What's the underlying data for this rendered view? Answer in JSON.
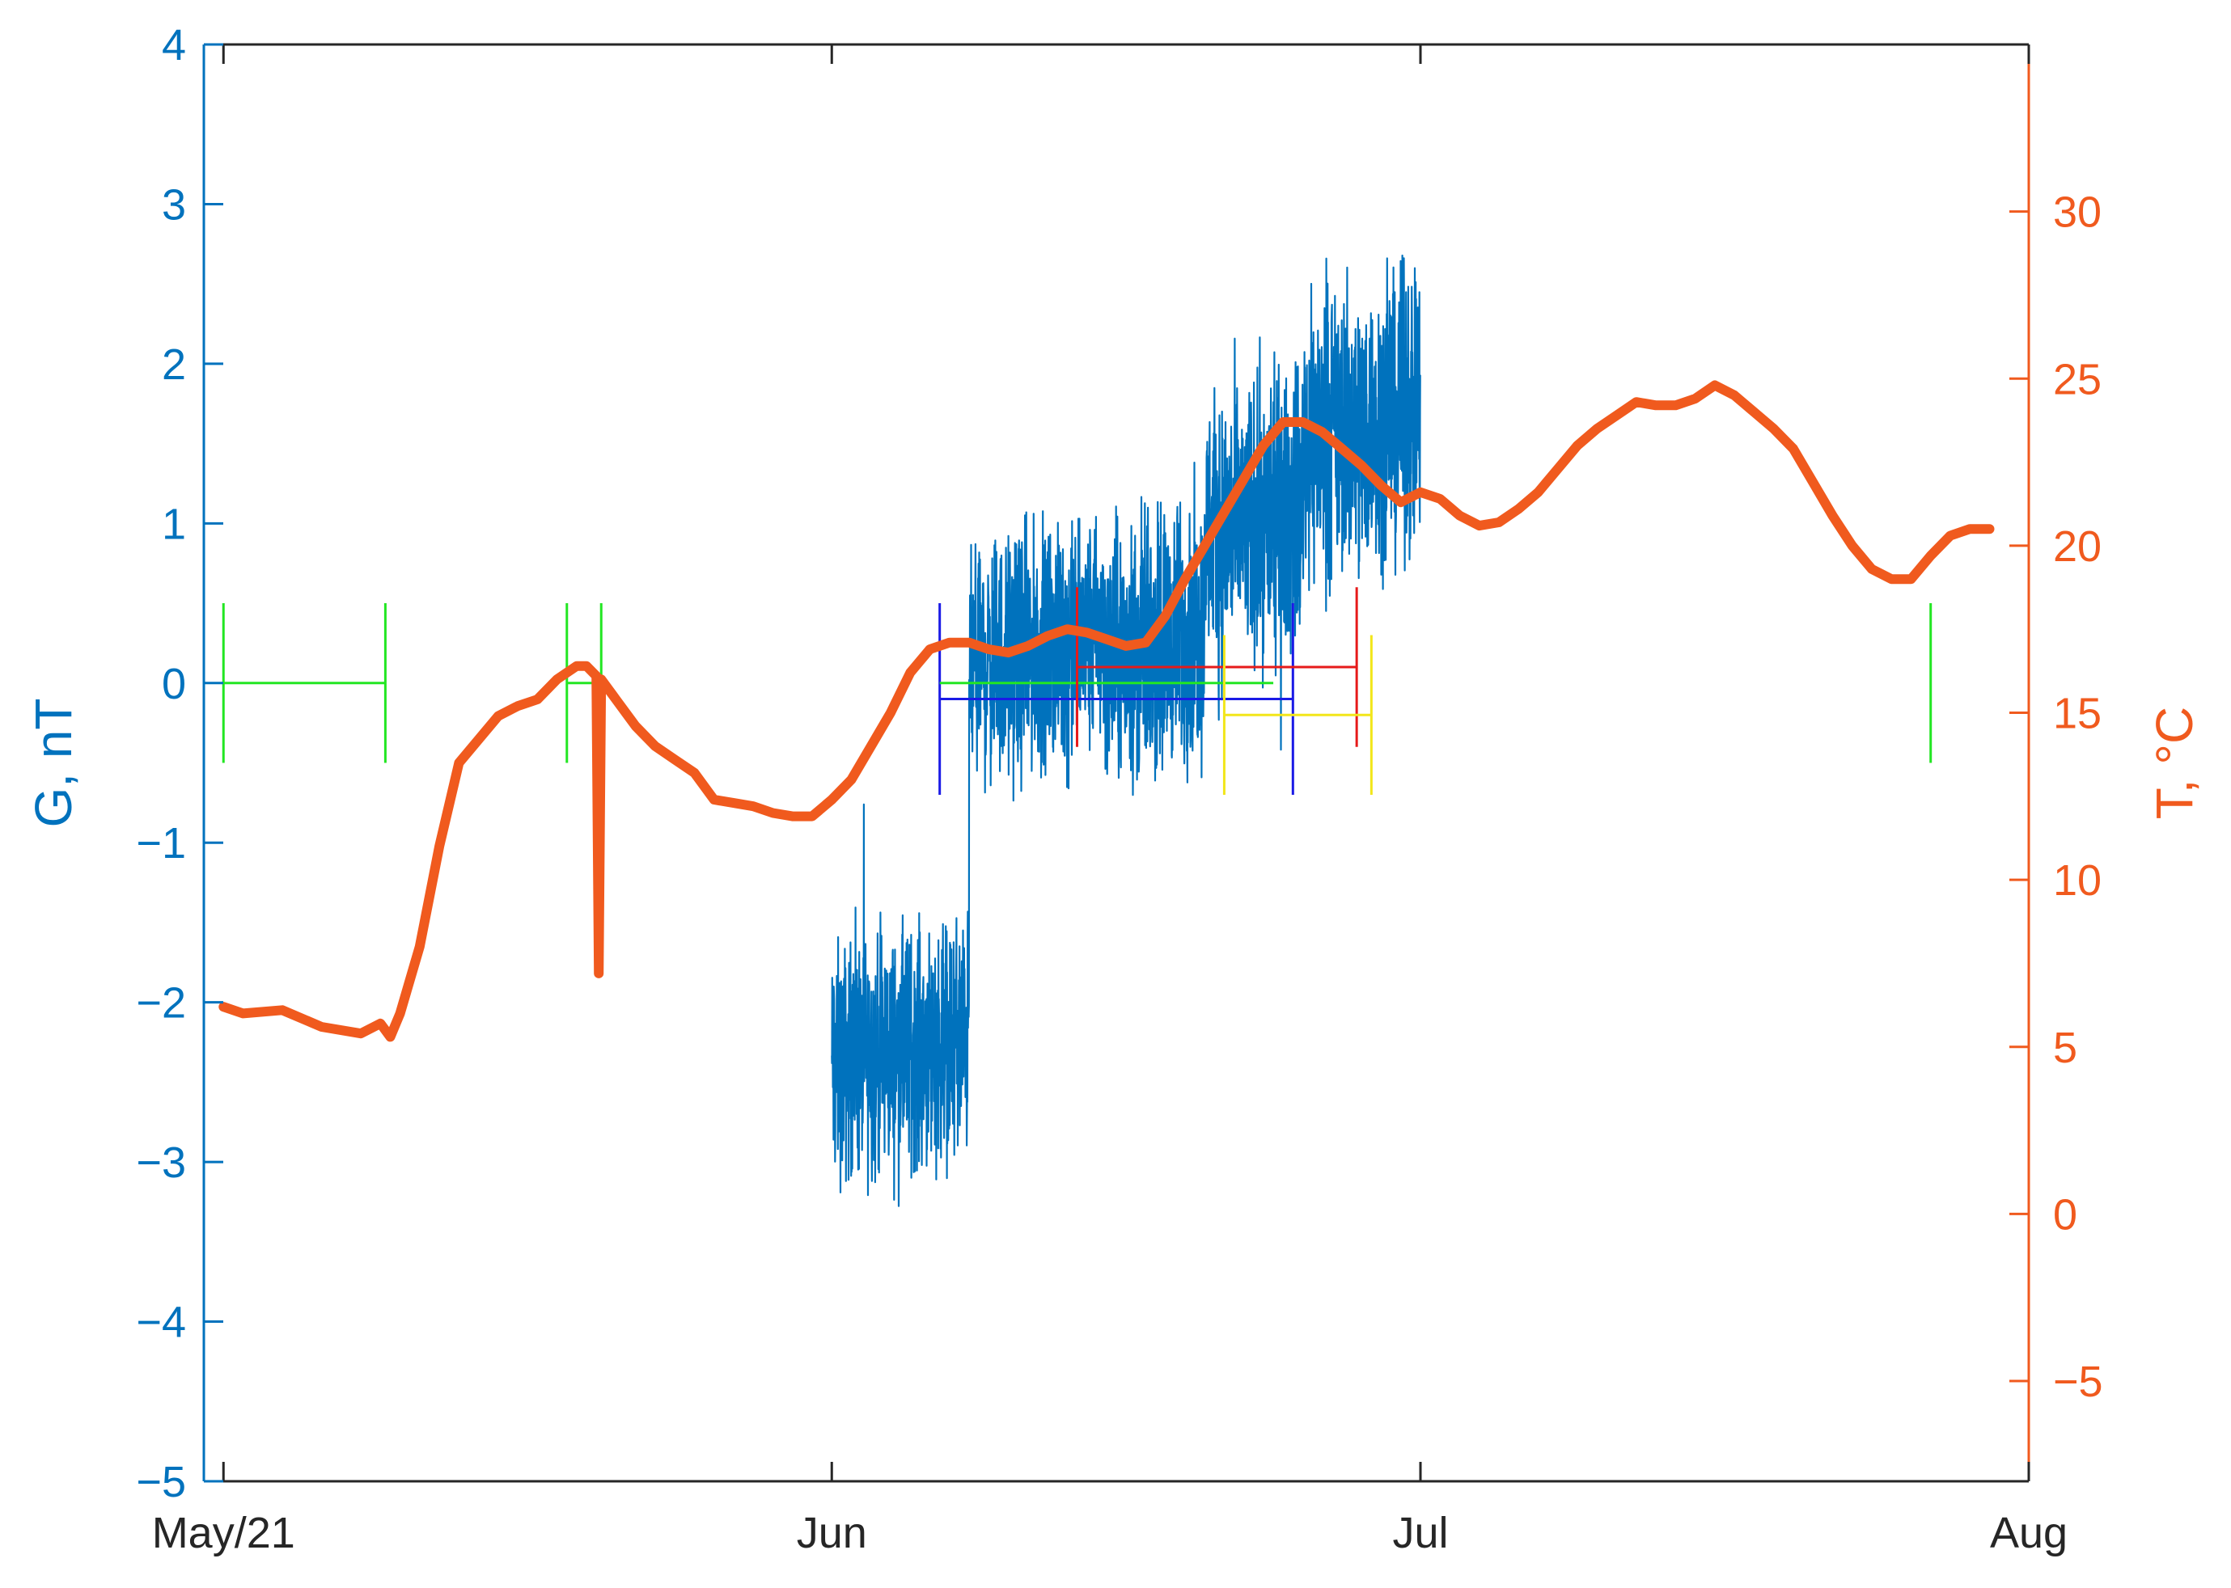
{
  "chart_data": {
    "type": "line",
    "title": "",
    "x_axis": {
      "ticks": [
        {
          "date": "2021-05-01",
          "label": "May/21"
        },
        {
          "date": "2021-06-01",
          "label": "Jun"
        },
        {
          "date": "2021-07-01",
          "label": "Jul"
        },
        {
          "date": "2021-08-01",
          "label": "Aug"
        }
      ],
      "range": [
        "2021-04-30",
        "2021-08-01"
      ]
    },
    "y_left": {
      "label": "G, nT",
      "range": [
        -5,
        4
      ],
      "ticks": [
        -5,
        -4,
        -3,
        -2,
        -1,
        0,
        1,
        2,
        3,
        4
      ],
      "tick_labels": [
        "−5",
        "−4",
        "−3",
        "−2",
        "−1",
        "0",
        "1",
        "2",
        "3",
        "4"
      ],
      "color": "#0072BD"
    },
    "y_right": {
      "label": "T, °C",
      "range": [
        -8,
        35
      ],
      "ticks": [
        -5,
        0,
        5,
        10,
        15,
        20,
        25,
        30
      ],
      "tick_labels": [
        "−5",
        "0",
        "5",
        "10",
        "15",
        "20",
        "25",
        "30"
      ],
      "color": "#F05A1E"
    },
    "grid": false,
    "legend": "none",
    "series": [
      {
        "axis": "left",
        "style": "noisy-line",
        "color": "#0072BD",
        "noise": true,
        "segments": [
          {
            "from": "2021-06-01",
            "to": "2021-06-08",
            "center": -2.4,
            "spread": 0.55
          },
          {
            "from": "2021-06-08",
            "to": "2021-06-15",
            "center": 0.1,
            "spread": 0.55
          },
          {
            "from": "2021-06-15",
            "to": "2021-06-20",
            "center": 0.15,
            "spread": 0.6
          },
          {
            "from": "2021-06-20",
            "to": "2021-06-25",
            "center": 0.9,
            "spread": 0.65
          },
          {
            "from": "2021-06-25",
            "to": "2021-07-01",
            "center": 1.5,
            "spread": 0.65
          }
        ],
        "points": [
          [
            "2021-06-01",
            -2.4
          ],
          [
            "2021-06-04",
            -2.5
          ],
          [
            "2021-06-07",
            -2.3
          ],
          [
            "2021-06-08",
            0.0
          ],
          [
            "2021-06-11",
            0.05
          ],
          [
            "2021-06-14",
            0.1
          ],
          [
            "2021-06-17",
            0.2
          ],
          [
            "2021-06-19",
            0.3
          ],
          [
            "2021-06-21",
            0.7
          ],
          [
            "2021-06-23",
            1.0
          ],
          [
            "2021-06-25",
            1.3
          ],
          [
            "2021-06-27",
            1.5
          ],
          [
            "2021-06-29",
            1.6
          ],
          [
            "2021-07-01",
            1.5
          ]
        ]
      },
      {
        "axis": "right",
        "style": "thick-line",
        "color": "#F05A1E",
        "points": [
          [
            "2021-05-01",
            6.2
          ],
          [
            "2021-05-02",
            6.0
          ],
          [
            "2021-05-04",
            6.1
          ],
          [
            "2021-05-06",
            5.6
          ],
          [
            "2021-05-08",
            5.4
          ],
          [
            "2021-05-09",
            5.7
          ],
          [
            "2021-05-09 12:00",
            5.3
          ],
          [
            "2021-05-10",
            6.0
          ],
          [
            "2021-05-11",
            8.0
          ],
          [
            "2021-05-12",
            11.0
          ],
          [
            "2021-05-13",
            13.5
          ],
          [
            "2021-05-14",
            14.2
          ],
          [
            "2021-05-15",
            14.9
          ],
          [
            "2021-05-16",
            15.2
          ],
          [
            "2021-05-17",
            15.4
          ],
          [
            "2021-05-18",
            16.0
          ],
          [
            "2021-05-19",
            16.4
          ],
          [
            "2021-05-19 12:00",
            16.4
          ],
          [
            "2021-05-20",
            16.1
          ],
          [
            "2021-05-20 03:00",
            7.2
          ],
          [
            "2021-05-20 06:00",
            16.0
          ],
          [
            "2021-05-21",
            15.4
          ],
          [
            "2021-05-22",
            14.6
          ],
          [
            "2021-05-23",
            14.0
          ],
          [
            "2021-05-24",
            13.6
          ],
          [
            "2021-05-25",
            13.2
          ],
          [
            "2021-05-26",
            12.4
          ],
          [
            "2021-05-27",
            12.3
          ],
          [
            "2021-05-28",
            12.2
          ],
          [
            "2021-05-29",
            12.0
          ],
          [
            "2021-05-30",
            11.9
          ],
          [
            "2021-05-31",
            11.9
          ],
          [
            "2021-06-01",
            12.4
          ],
          [
            "2021-06-02",
            13.0
          ],
          [
            "2021-06-03",
            14.0
          ],
          [
            "2021-06-04",
            15.0
          ],
          [
            "2021-06-05",
            16.2
          ],
          [
            "2021-06-06",
            16.9
          ],
          [
            "2021-06-07",
            17.1
          ],
          [
            "2021-06-08",
            17.1
          ],
          [
            "2021-06-09",
            16.9
          ],
          [
            "2021-06-10",
            16.8
          ],
          [
            "2021-06-11",
            17.0
          ],
          [
            "2021-06-12",
            17.3
          ],
          [
            "2021-06-13",
            17.5
          ],
          [
            "2021-06-14",
            17.4
          ],
          [
            "2021-06-15",
            17.2
          ],
          [
            "2021-06-16",
            17.0
          ],
          [
            "2021-06-17",
            17.1
          ],
          [
            "2021-06-18",
            17.9
          ],
          [
            "2021-06-19",
            19.0
          ],
          [
            "2021-06-20",
            20.0
          ],
          [
            "2021-06-21",
            21.0
          ],
          [
            "2021-06-22",
            22.0
          ],
          [
            "2021-06-23",
            23.0
          ],
          [
            "2021-06-24",
            23.7
          ],
          [
            "2021-06-25",
            23.7
          ],
          [
            "2021-06-26",
            23.4
          ],
          [
            "2021-06-27",
            22.9
          ],
          [
            "2021-06-28",
            22.4
          ],
          [
            "2021-06-29",
            21.8
          ],
          [
            "2021-06-30",
            21.3
          ],
          [
            "2021-07-01",
            21.6
          ],
          [
            "2021-07-02",
            21.4
          ],
          [
            "2021-07-03",
            20.9
          ],
          [
            "2021-07-04",
            20.6
          ],
          [
            "2021-07-05",
            20.7
          ],
          [
            "2021-07-06",
            21.1
          ],
          [
            "2021-07-07",
            21.6
          ],
          [
            "2021-07-08",
            22.3
          ],
          [
            "2021-07-09",
            23.0
          ],
          [
            "2021-07-10",
            23.5
          ],
          [
            "2021-07-11",
            23.9
          ],
          [
            "2021-07-12",
            24.3
          ],
          [
            "2021-07-13",
            24.2
          ],
          [
            "2021-07-14",
            24.2
          ],
          [
            "2021-07-15",
            24.4
          ],
          [
            "2021-07-16",
            24.8
          ],
          [
            "2021-07-17",
            24.5
          ],
          [
            "2021-07-18",
            24.0
          ],
          [
            "2021-07-19",
            23.5
          ],
          [
            "2021-07-20",
            22.9
          ],
          [
            "2021-07-21",
            21.9
          ],
          [
            "2021-07-22",
            20.9
          ],
          [
            "2021-07-23",
            20.0
          ],
          [
            "2021-07-24",
            19.3
          ],
          [
            "2021-07-25",
            19.0
          ],
          [
            "2021-07-26",
            19.0
          ],
          [
            "2021-07-27",
            19.7
          ],
          [
            "2021-07-28",
            20.3
          ],
          [
            "2021-07-29",
            20.5
          ],
          [
            "2021-07-30",
            20.5
          ]
        ]
      }
    ],
    "markers": [
      {
        "color": "#22E622",
        "y": 0.0,
        "from": "2021-05-01",
        "to": "2021-05-09 06:00",
        "half_height": 0.5
      },
      {
        "color": "#22E622",
        "y": 0.0,
        "from": "2021-05-18 12:00",
        "to": "2021-05-20 06:00",
        "half_height": 0.5
      },
      {
        "color": "#1A1AE6",
        "y": -0.1,
        "from": "2021-06-06 12:00",
        "to": "2021-06-24 12:00",
        "half_height": 0.6
      },
      {
        "color": "#22E622",
        "y": 0.0,
        "from": "2021-06-06 12:00",
        "to": "2021-06-23 12:00",
        "half_height": 0.0
      },
      {
        "color": "#E61A1A",
        "y": 0.1,
        "from": "2021-06-13 12:00",
        "to": "2021-06-27 18:00",
        "half_height": 0.5
      },
      {
        "color": "#F2E61A",
        "y": -0.2,
        "from": "2021-06-21",
        "to": "2021-06-28 12:00",
        "half_height": 0.5
      },
      {
        "color": "#22E622",
        "y": 0.0,
        "from": "2021-07-27",
        "to": "2021-07-27",
        "half_height": 0.5
      }
    ]
  }
}
